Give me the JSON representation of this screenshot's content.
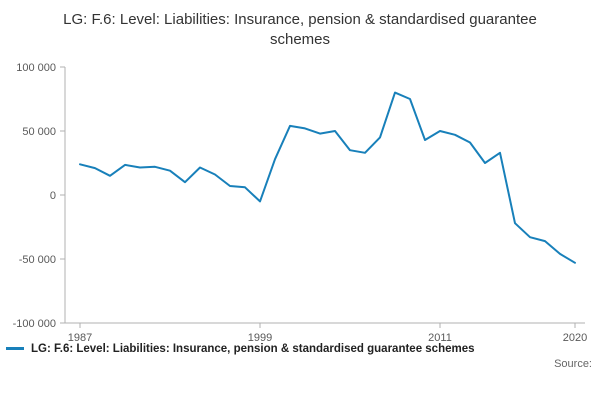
{
  "title": "LG: F.6: Level: Liabilities: Insurance, pension & standardised guarantee schemes",
  "legend": {
    "label": "LG: F.6: Level: Liabilities: Insurance, pension & standardised guarantee schemes"
  },
  "source_label": "Source:",
  "colors": {
    "line": "#1880ba",
    "axis": "#b0b0b0",
    "tick_text": "#595959"
  },
  "chart_data": {
    "type": "line",
    "title": "LG: F.6: Level: Liabilities: Insurance, pension & standardised guarantee schemes",
    "xlabel": "",
    "ylabel": "",
    "ylim": [
      -100000,
      100000
    ],
    "grid": false,
    "legend_position": "bottom-left",
    "x": [
      1987,
      1988,
      1989,
      1990,
      1991,
      1992,
      1993,
      1994,
      1995,
      1996,
      1997,
      1998,
      1999,
      2000,
      2001,
      2002,
      2003,
      2004,
      2005,
      2006,
      2007,
      2008,
      2009,
      2010,
      2011,
      2012,
      2013,
      2014,
      2015,
      2016,
      2017,
      2018,
      2019,
      2020
    ],
    "series": [
      {
        "name": "LG: F.6: Level: Liabilities: Insurance, pension & standardised guarantee schemes",
        "values": [
          24000,
          21000,
          15000,
          23500,
          21500,
          22000,
          19000,
          10000,
          21500,
          16000,
          7000,
          6000,
          -5000,
          28000,
          54000,
          52000,
          48000,
          50000,
          35000,
          33000,
          45000,
          80000,
          75000,
          43000,
          50000,
          47000,
          41000,
          25000,
          33000,
          -22000,
          -33000,
          -36000,
          -46000,
          -53000
        ]
      }
    ],
    "yticks": [
      {
        "value": 100000,
        "label": "100 000"
      },
      {
        "value": 50000,
        "label": "50 000"
      },
      {
        "value": 0,
        "label": "0"
      },
      {
        "value": -50000,
        "label": "-50 000"
      },
      {
        "value": -100000,
        "label": "-100 000"
      }
    ],
    "xticks": [
      {
        "value": 1987,
        "label": "1987"
      },
      {
        "value": 1999,
        "label": "1999"
      },
      {
        "value": 2011,
        "label": "2011"
      },
      {
        "value": 2020,
        "label": "2020"
      }
    ]
  }
}
